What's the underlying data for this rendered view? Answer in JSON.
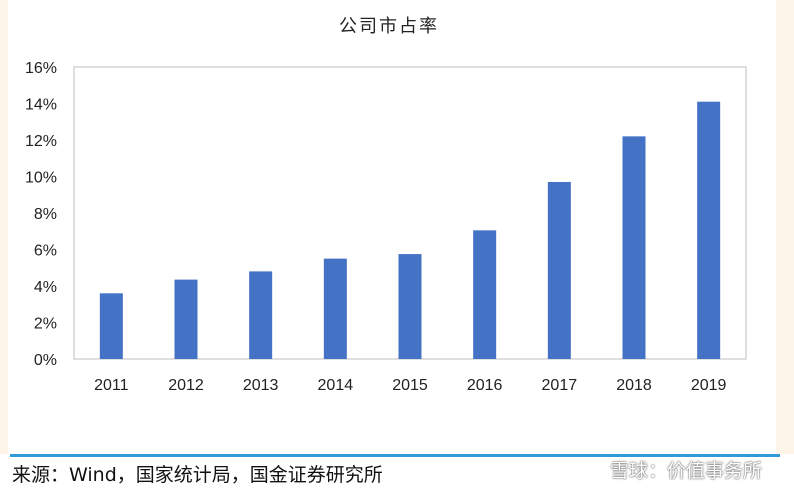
{
  "chart_data": {
    "type": "bar",
    "title": "公司市占率",
    "categories": [
      "2011",
      "2012",
      "2013",
      "2014",
      "2015",
      "2016",
      "2017",
      "2018",
      "2019"
    ],
    "values": [
      3.6,
      4.35,
      4.8,
      5.5,
      5.75,
      7.05,
      9.7,
      12.2,
      14.1
    ],
    "value_unit": "%",
    "ylim": [
      0,
      16
    ],
    "yticks": [
      0,
      2,
      4,
      6,
      8,
      10,
      12,
      14,
      16
    ],
    "ytick_labels": [
      "0%",
      "2%",
      "4%",
      "6%",
      "8%",
      "10%",
      "12%",
      "14%",
      "16%"
    ],
    "grid": false,
    "bar_color": "#4472c4",
    "xlabel": "",
    "ylabel": ""
  },
  "footer": {
    "source": "来源：Wind，国家统计局，国金证券研究所",
    "watermark": "雪球：价值事务所"
  },
  "colors": {
    "accent_rule": "#2f9ad6",
    "page_tint": "#fdf6e8"
  }
}
